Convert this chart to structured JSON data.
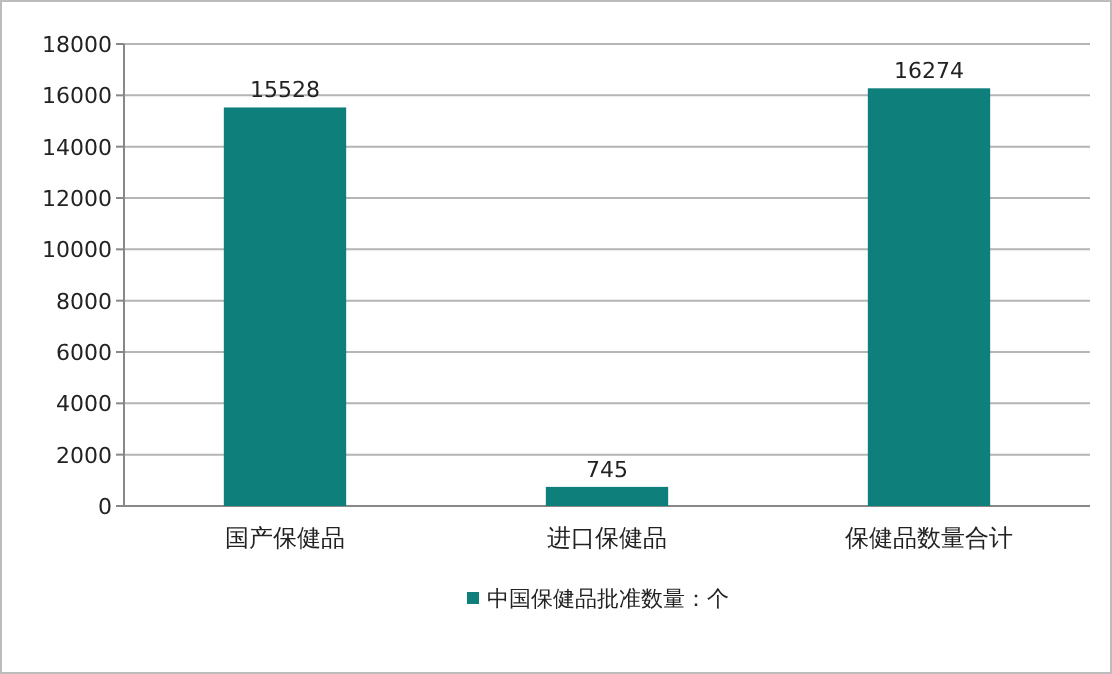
{
  "chart_data": {
    "type": "bar",
    "categories": [
      "国产保健品",
      "进口保健品",
      "保健品数量合计"
    ],
    "series": [
      {
        "name": "中国保健品批准数量：个",
        "color": "#0f7f7b",
        "values": [
          15528,
          745,
          16274
        ]
      }
    ],
    "ylim": [
      0,
      18000
    ],
    "yticks": [
      0,
      2000,
      4000,
      6000,
      8000,
      10000,
      12000,
      14000,
      16000,
      18000
    ],
    "grid": "y",
    "legend": "bottom",
    "data_labels": true
  }
}
